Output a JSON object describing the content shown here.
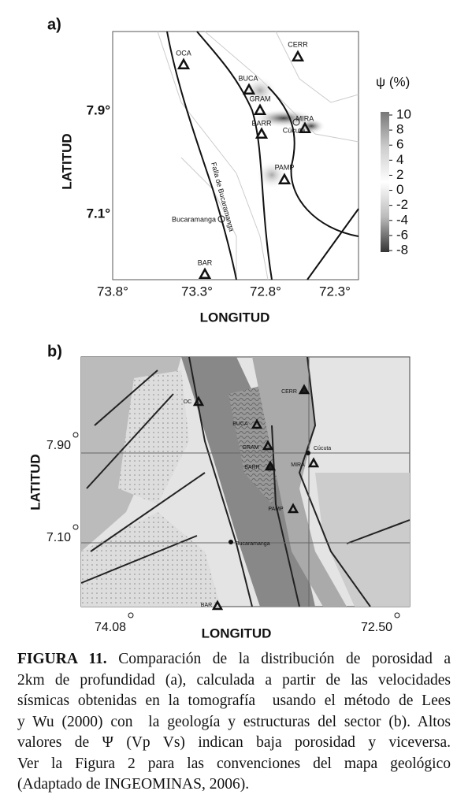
{
  "panel_a": {
    "label": "a)",
    "y_axis_label": "LATITUD",
    "x_axis_label": "LONGITUD",
    "yticks": [
      "7.9°",
      "7.1°"
    ],
    "xticks": [
      "73.8°",
      "73.3°",
      "72.8°",
      "72.3°"
    ],
    "colorbar": {
      "title": "ψ (%)",
      "ticks": [
        10,
        8,
        6,
        4,
        2,
        0,
        -2,
        -4,
        -6,
        -8
      ]
    },
    "stations": [
      "OCA",
      "BUCA",
      "GRAM",
      "BARR",
      "MIRA",
      "CERR",
      "PAMP",
      "BAR"
    ],
    "places": [
      "Cúcuta",
      "Bucaramanga"
    ],
    "fault": "Falla de Bucaramanga"
  },
  "panel_b": {
    "label": "b)",
    "y_axis_label": "LATITUD",
    "x_axis_label": "LONGITUD",
    "yticks": [
      "7.90",
      "7.10"
    ],
    "xticks": [
      "74.08",
      "72.50"
    ],
    "stations": [
      "OC",
      "BUCA",
      "GRAM",
      "BARR",
      "MIRA",
      "CERR",
      "PAMP",
      "BAR"
    ],
    "places": [
      "Cúcuta",
      "Bucaramanga"
    ]
  },
  "caption": {
    "label": "FIGURA 11.",
    "lines": [
      " Comparación de la distribución de porosidad a",
      "2km de profundidad (a), calculada a partir de las velocidades",
      "sísmicas obtenidas en la tomografía  usando el método de Lees",
      "y Wu (2000) con  la geología y estructuras del sector (b). Altos",
      "valores de Ψ (Vp Vs) indican baja porosidad y viceversa.",
      "Ver la Figura 2 para las convenciones del mapa geológico",
      "(Adaptado de INGEOMINAS, 2006)."
    ]
  }
}
